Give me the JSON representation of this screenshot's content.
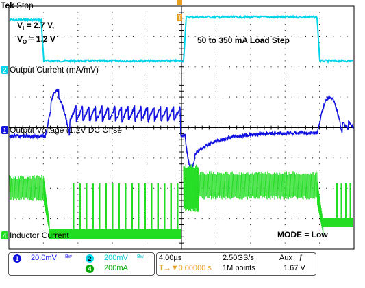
{
  "header": {
    "brand": "Tek",
    "acq_state": "Stop",
    "trigger_marker": "T"
  },
  "annotations": {
    "vi_line": "V",
    "vi_sub": "I",
    "vi_value": " = 2.7 V,",
    "vo_line": "V",
    "vo_sub": "O",
    "vo_value": " = 1.2 V",
    "load_step": "50 to 350 mA Load Step",
    "mode": "MODE = Low"
  },
  "channels": [
    {
      "id": "2",
      "label": "Output Current (mA/mV)",
      "color": "#00d4e8"
    },
    {
      "id": "1",
      "label": "Output Voltage (1.2V DC Offse",
      "color": "#1010e0"
    },
    {
      "id": "4",
      "label": "Inductor Current",
      "color": "#22dd22"
    }
  ],
  "status": {
    "ch1_num": "1",
    "ch1_scale": "20.0mV",
    "ch1_bw": "Bw",
    "ch2_num": "2",
    "ch2_scale": "200mV",
    "ch2_bw": "Bw",
    "ch4_num": "4",
    "ch4_scale": "200mA",
    "timebase": "4.00µs",
    "trig_pos": "T→▼0.00000 s",
    "sample_rate": "2.50GS/s",
    "record_length": "1M points",
    "trig_source": "Aux",
    "trig_slope": "ƒ",
    "trig_level": "1.67 V"
  },
  "colors": {
    "grid": "#000000",
    "ch1": "#1010e0",
    "ch2": "#00d4e8",
    "ch4": "#22dd22",
    "marker": "#e8a020"
  }
}
